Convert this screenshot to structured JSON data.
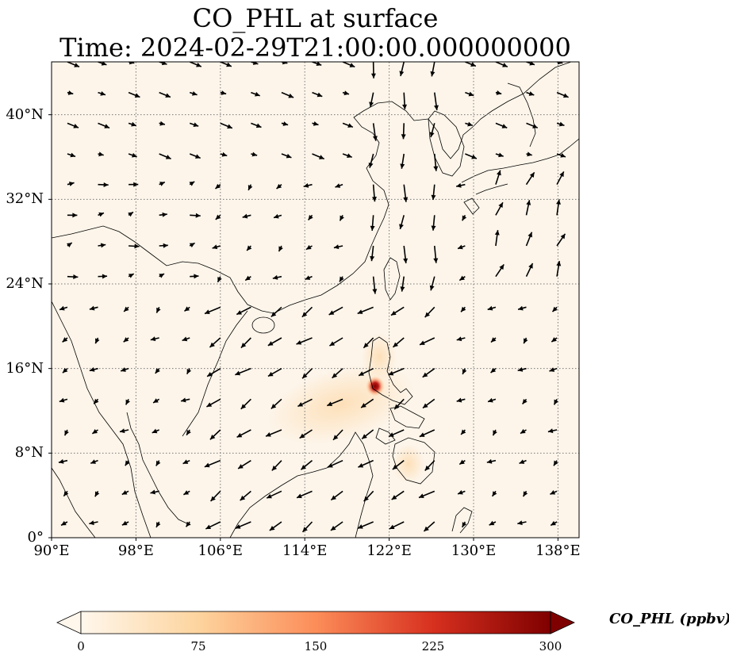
{
  "title": {
    "line1": "CO_PHL at surface",
    "line2": "Time: 2024-02-29T21:00:00.000000000"
  },
  "map": {
    "lon_range": [
      90,
      140
    ],
    "lat_range": [
      0,
      45
    ],
    "background_color": "#fdf5ea",
    "land_outline_color": "#000000",
    "gridline_style": "dotted",
    "x_ticks": [
      {
        "lon": 90,
        "label": "90°E"
      },
      {
        "lon": 98,
        "label": "98°E"
      },
      {
        "lon": 106,
        "label": "106°E"
      },
      {
        "lon": 114,
        "label": "114°E"
      },
      {
        "lon": 122,
        "label": "122°E"
      },
      {
        "lon": 130,
        "label": "130°E"
      },
      {
        "lon": 138,
        "label": "138°E"
      }
    ],
    "y_ticks": [
      {
        "lat": 0,
        "label": "0°"
      },
      {
        "lat": 8,
        "label": "8°N"
      },
      {
        "lat": 16,
        "label": "16°N"
      },
      {
        "lat": 24,
        "label": "24°N"
      },
      {
        "lat": 32,
        "label": "32°N"
      },
      {
        "lat": 40,
        "label": "40°N"
      }
    ],
    "hotspot": {
      "lon": 121.0,
      "lat": 14.6,
      "value_ppbv": 300
    },
    "wind_vectors": "quiver arrows (mostly northeasterly flow over South China Sea; northerly flow near 124°E)"
  },
  "colorbar": {
    "label": "CO_PHL (ppbv)",
    "cmap": "OrRd",
    "vmin": 0,
    "vmax": 300,
    "extend": "both",
    "ticks": [
      {
        "value": 0,
        "label": "0"
      },
      {
        "value": 75,
        "label": "75"
      },
      {
        "value": 150,
        "label": "150"
      },
      {
        "value": 225,
        "label": "225"
      },
      {
        "value": 300,
        "label": "300"
      }
    ],
    "colors": [
      "#fff7ec",
      "#fdd49e",
      "#fc8d59",
      "#d7301f",
      "#7f0000"
    ]
  }
}
